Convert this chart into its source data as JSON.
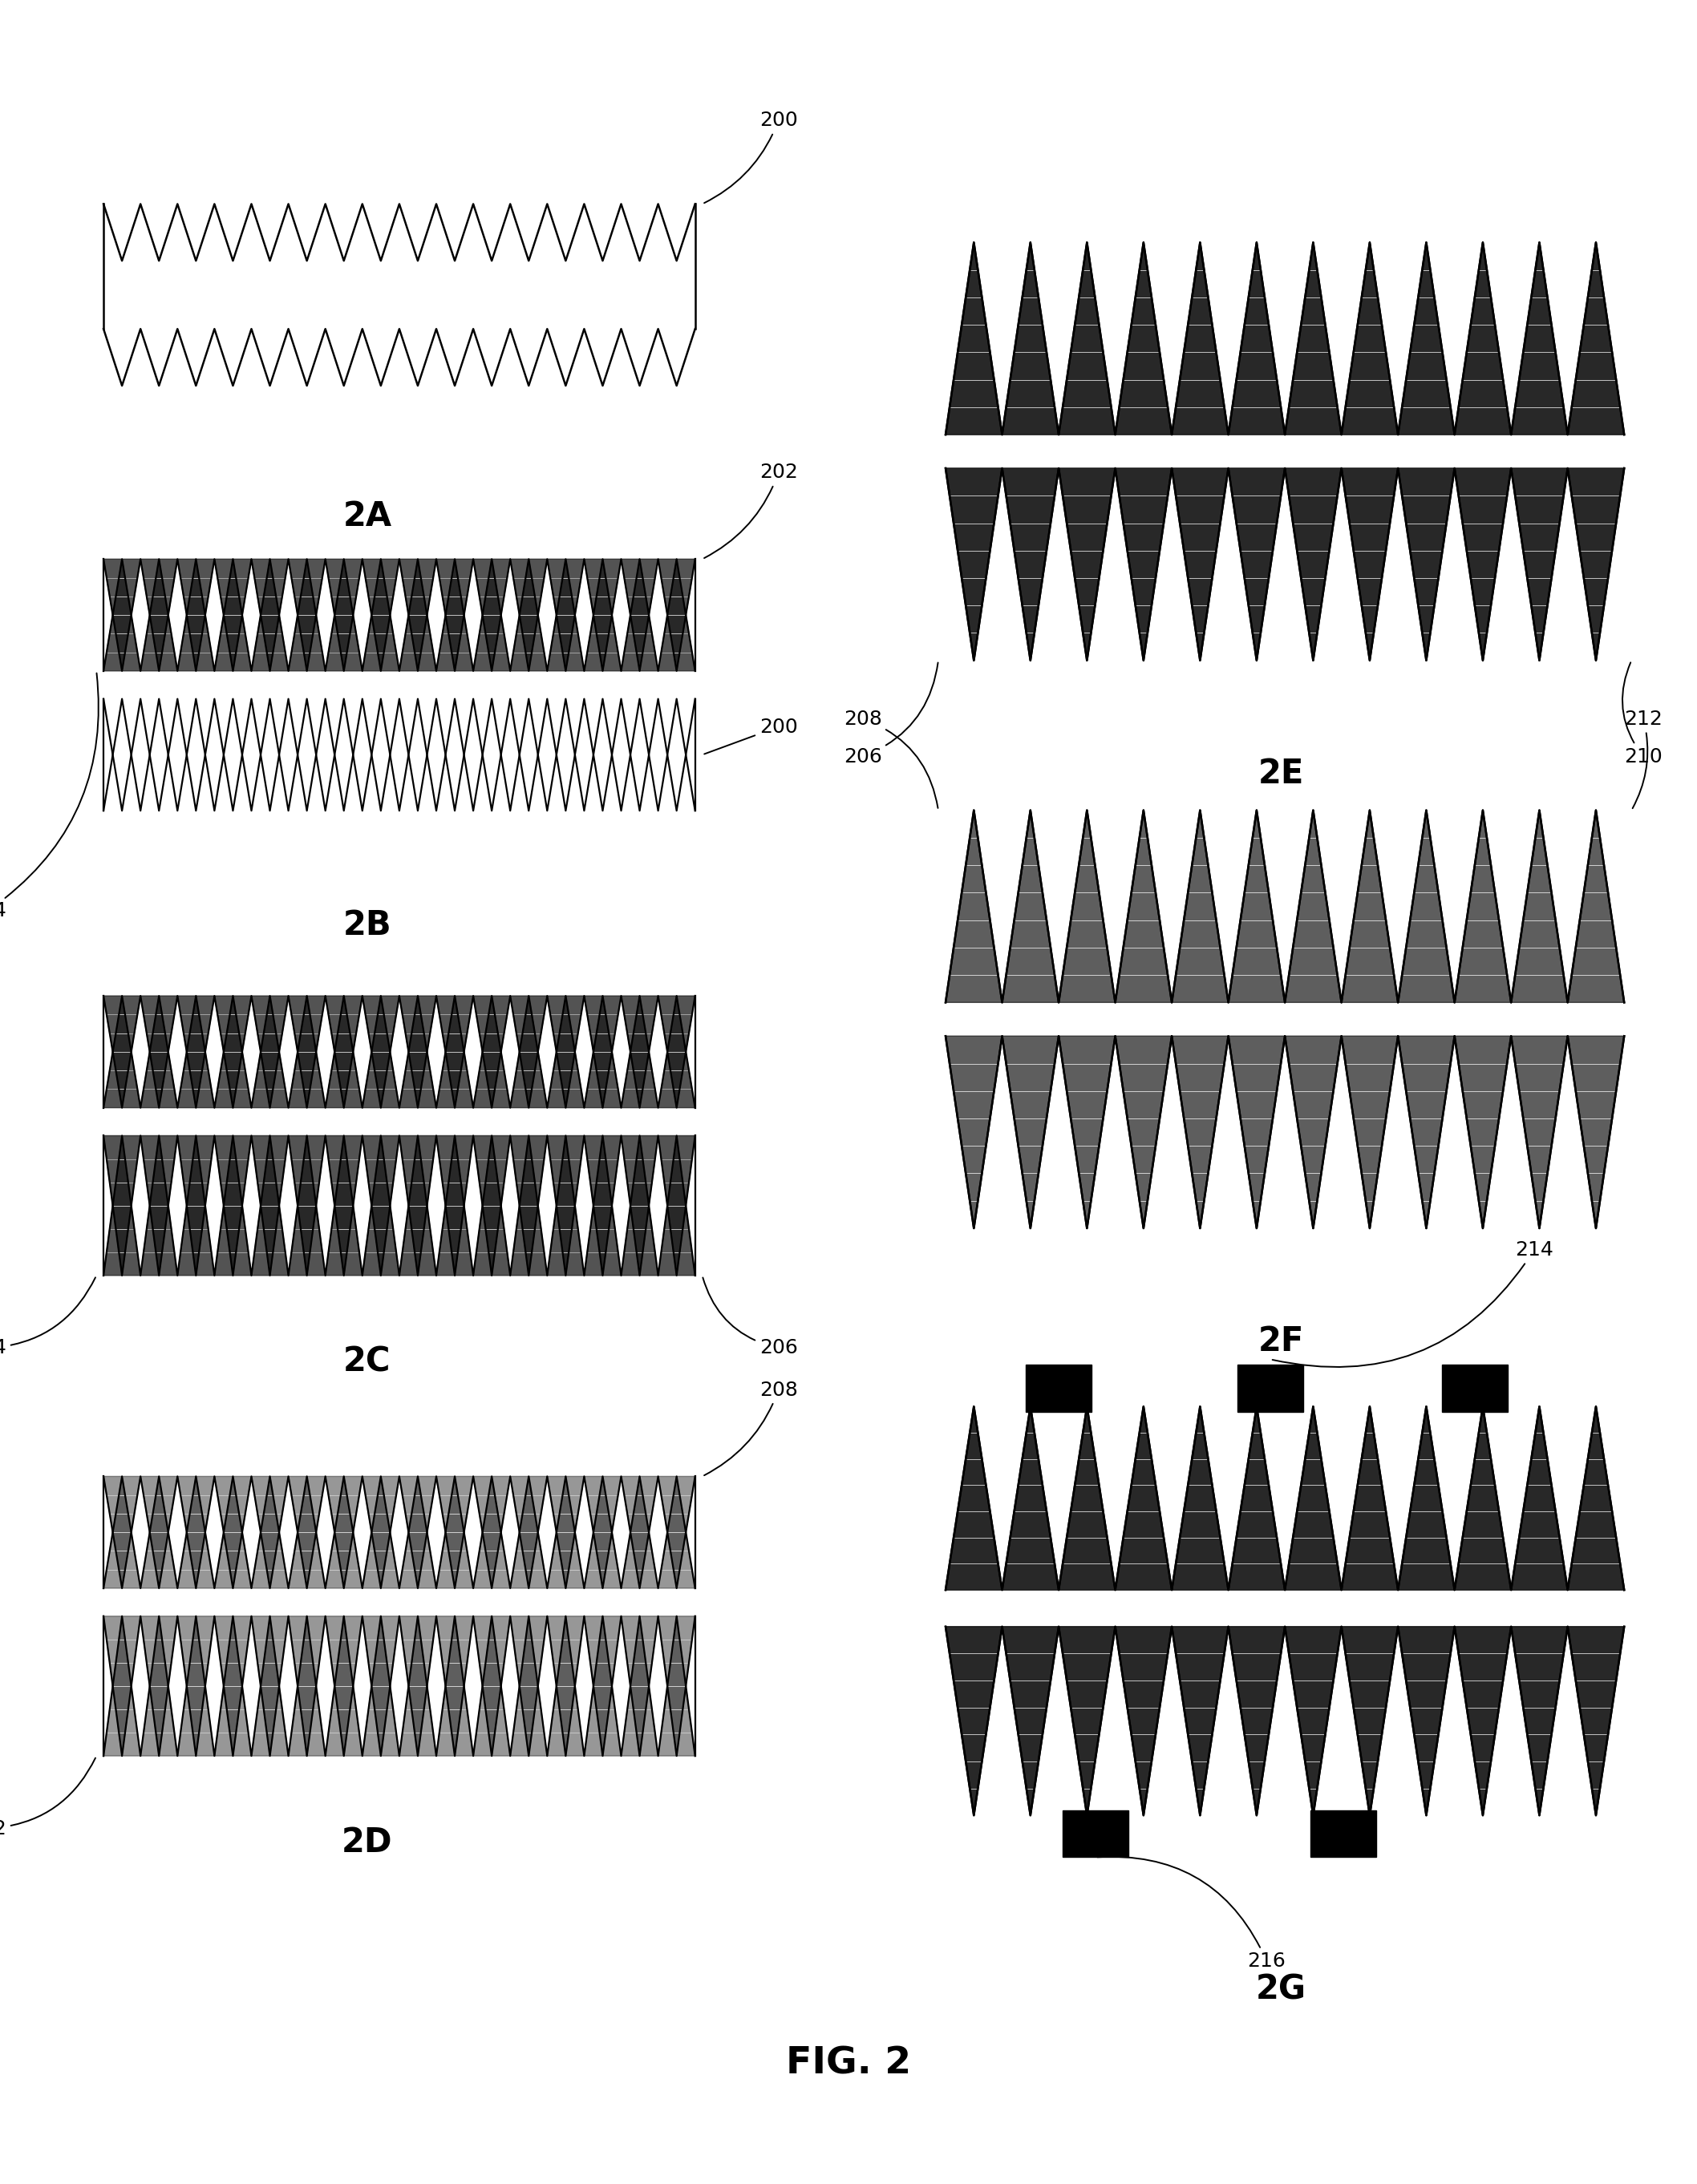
{
  "fig_width": 21.16,
  "fig_height": 27.24,
  "bg_color": "#ffffff",
  "label_fontsize": 18,
  "title_fontsize": 30,
  "axes_pos": {
    "2A": [
      0.04,
      0.8,
      0.42,
      0.13
    ],
    "2B": [
      0.04,
      0.6,
      0.42,
      0.16
    ],
    "2C": [
      0.04,
      0.4,
      0.42,
      0.16
    ],
    "2D": [
      0.04,
      0.18,
      0.42,
      0.16
    ],
    "2E": [
      0.54,
      0.68,
      0.43,
      0.22
    ],
    "2F": [
      0.54,
      0.42,
      0.43,
      0.22
    ],
    "2G": [
      0.54,
      0.14,
      0.43,
      0.24
    ]
  }
}
